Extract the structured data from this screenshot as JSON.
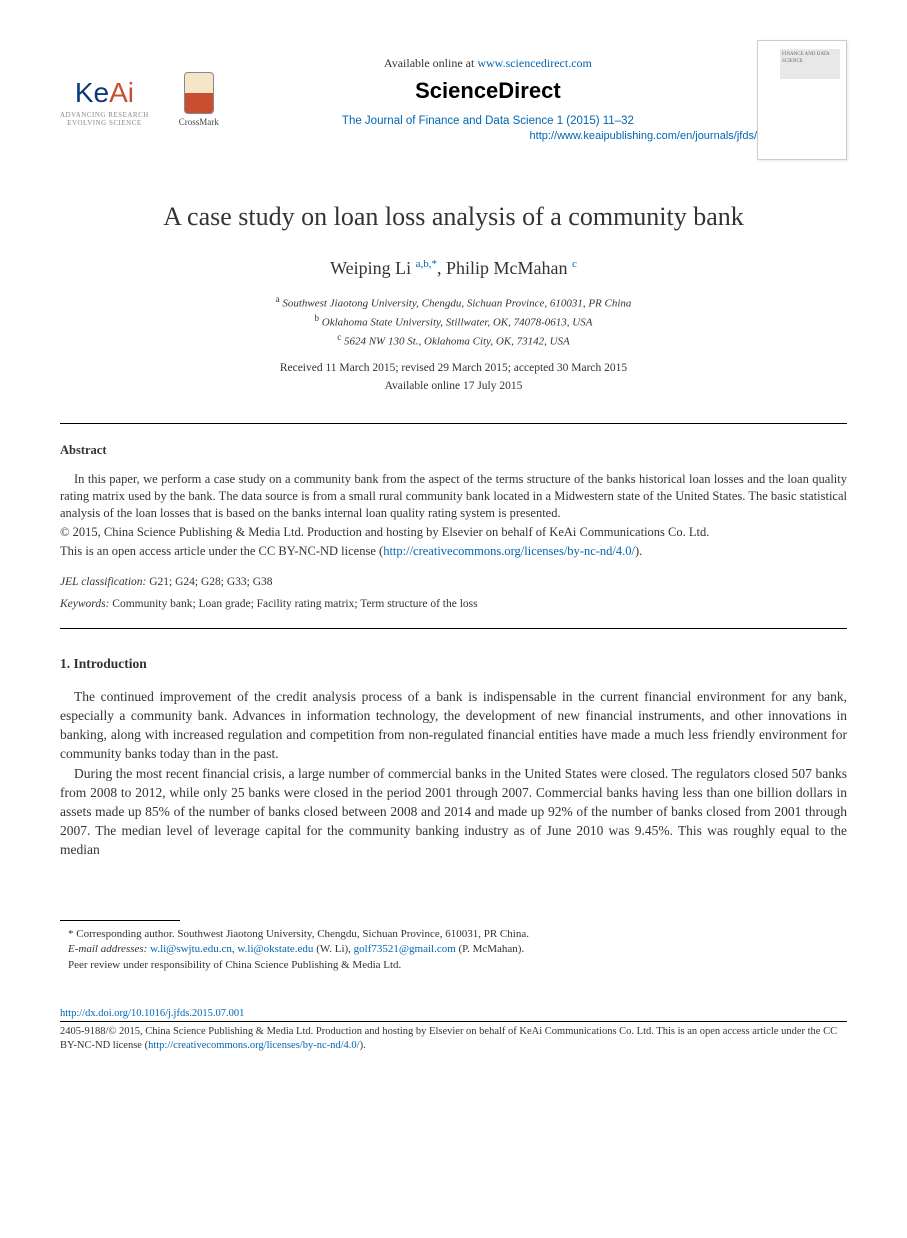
{
  "header": {
    "keai_brand_main": "Ke",
    "keai_brand_accent": "Ai",
    "keai_sub1": "ADVANCING RESEARCH",
    "keai_sub2": "EVOLVING SCIENCE",
    "crossmark_label": "CrossMark",
    "avail_prefix": "Available online at ",
    "avail_url": "www.sciencedirect.com",
    "sd_logo": "ScienceDirect",
    "journal_ref": "The Journal of Finance and Data Science 1 (2015) 11–32",
    "journal_url": "http://www.keaipublishing.com/en/journals/jfds/",
    "cover_text": "FINANCE AND DATA SCIENCE"
  },
  "title": "A case study on loan loss analysis of a community bank",
  "authors": {
    "a1_name": "Weiping Li",
    "a1_sup": "a,b,",
    "a1_star": "*",
    "sep": ", ",
    "a2_name": "Philip McMahan",
    "a2_sup": "c"
  },
  "affils": {
    "a": "Southwest Jiaotong University, Chengdu, Sichuan Province, 610031, PR China",
    "b": "Oklahoma State University, Stillwater, OK, 74078-0613, USA",
    "c": "5624 NW 130 St., Oklahoma City, OK, 73142, USA"
  },
  "dates": {
    "line1": "Received 11 March 2015; revised 29 March 2015; accepted 30 March 2015",
    "line2": "Available online 17 July 2015"
  },
  "abstract": {
    "label": "Abstract",
    "body": "In this paper, we perform a case study on a community bank from the aspect of the terms structure of the banks historical loan losses and the loan quality rating matrix used by the bank. The data source is from a small rural community bank located in a Midwestern state of the United States. The basic statistical analysis of the loan losses that is based on the banks internal loan quality rating system is presented.",
    "copy1": "© 2015, China Science Publishing & Media Ltd. Production and hosting by Elsevier on behalf of KeAi Communications Co. Ltd.",
    "copy2_prefix": "This is an open access article under the CC BY-NC-ND license (",
    "copy2_link": "http://creativecommons.org/licenses/by-nc-nd/4.0/",
    "copy2_suffix": ")."
  },
  "jel": {
    "label": "JEL classification:",
    "codes": " G21; G24; G28; G33; G38"
  },
  "keywords": {
    "label": "Keywords:",
    "list": " Community bank; Loan grade; Facility rating matrix; Term structure of the loss"
  },
  "section1": {
    "head": "1.  Introduction",
    "p1": "The continued improvement of the credit analysis process of a bank is indispensable in the current financial environment for any bank, especially a community bank. Advances in information technology, the development of new financial instruments, and other innovations in banking, along with increased regulation and competition from non-regulated financial entities have made a much less friendly environment for community banks today than in the past.",
    "p2": "During the most recent financial crisis, a large number of commercial banks in the United States were closed. The regulators closed 507 banks from 2008 to 2012, while only 25 banks were closed in the period 2001 through 2007. Commercial banks having less than one billion dollars in assets made up 85% of the number of banks closed between 2008 and 2014 and made up 92% of the number of banks closed from 2001 through 2007. The median level of leverage capital for the community banking industry as of June 2010 was 9.45%. This was roughly equal to the median"
  },
  "footnotes": {
    "corr": "* Corresponding author. Southwest Jiaotong University, Chengdu, Sichuan Province, 610031, PR China.",
    "email_label": "E-mail addresses:",
    "email1": "w.li@swjtu.edu.cn",
    "email_sep1": ", ",
    "email2": "w.li@okstate.edu",
    "email_wli": " (W. Li), ",
    "email3": "golf73521@gmail.com",
    "email_pm": " (P. McMahan).",
    "peer": "Peer review under responsibility of China Science Publishing & Media Ltd."
  },
  "doi": {
    "url": "http://dx.doi.org/10.1016/j.jfds.2015.07.001",
    "issn_line": "2405-9188/© 2015, China Science Publishing & Media Ltd. Production and hosting by Elsevier on behalf of KeAi Communications Co. Ltd. This is an open access article under the CC BY-NC-ND license (",
    "cc_link": "http://creativecommons.org/licenses/by-nc-nd/4.0/",
    "suffix": ")."
  }
}
